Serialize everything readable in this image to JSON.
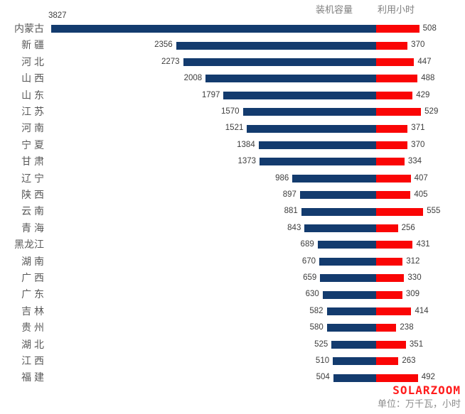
{
  "footer": {
    "watermark": "SOLARZOOM",
    "unit_note": "单位：万千瓦，小时"
  },
  "colors": {
    "background": "#FFFFFF",
    "capacity_bar": "#133B6E",
    "hours_bar": "#FA0505",
    "legend_text": "#808080",
    "province_text": "#595959",
    "value_text": "#3D3D3D",
    "watermark_text": "#FF1C1C",
    "unit_text": "#8C8C8C"
  },
  "chart_data": {
    "type": "bar",
    "layout": "horizontal-diverging",
    "title": "",
    "legend_position": "top",
    "shared_value_axis": true,
    "value_axis_max": 3827,
    "unit": "万千瓦, 小时",
    "categories": [
      "内蒙古",
      "新 疆",
      "河 北",
      "山 西",
      "山 东",
      "江 苏",
      "河 南",
      "宁 夏",
      "甘 肃",
      "辽 宁",
      "陕 西",
      "云 南",
      "青 海",
      "黑龙江",
      "湖 南",
      "广 西",
      "广 东",
      "吉 林",
      "贵 州",
      "湖 北",
      "江 西",
      "福 建"
    ],
    "series": [
      {
        "name": "装机容量",
        "color": "#133B6E",
        "direction": "left",
        "values": [
          3827,
          2356,
          2273,
          2008,
          1797,
          1570,
          1521,
          1384,
          1373,
          986,
          897,
          881,
          843,
          689,
          670,
          659,
          630,
          582,
          580,
          525,
          510,
          504
        ]
      },
      {
        "name": "利用小时",
        "color": "#FA0505",
        "direction": "right",
        "values": [
          508,
          370,
          447,
          488,
          429,
          529,
          371,
          370,
          334,
          407,
          405,
          555,
          256,
          431,
          312,
          330,
          309,
          414,
          238,
          351,
          263,
          492
        ]
      }
    ]
  }
}
